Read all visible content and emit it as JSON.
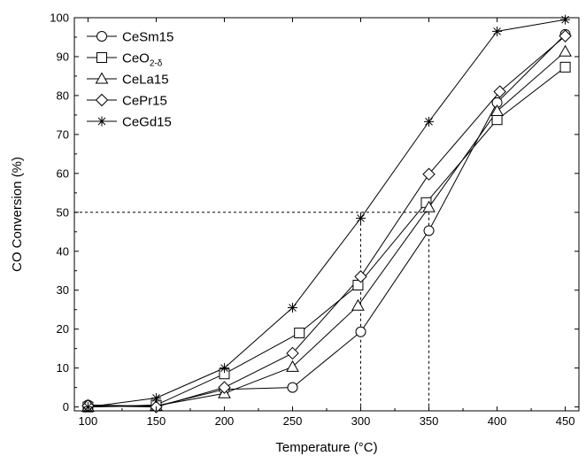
{
  "chart_data": {
    "type": "line",
    "title": "",
    "xlabel": "Temperature (°C)",
    "ylabel": "CO Conversion (%)",
    "xlim": [
      90,
      460
    ],
    "ylim": [
      -1,
      100
    ],
    "xticks": [
      100,
      150,
      200,
      250,
      300,
      350,
      400,
      450
    ],
    "yticks": [
      0,
      10,
      20,
      30,
      40,
      50,
      60,
      70,
      80,
      90,
      100
    ],
    "grid": false,
    "legend_position": "top-left",
    "series": [
      {
        "name": "CeSm15",
        "name_main": "CeSm15",
        "name_sub": "",
        "marker": "circle",
        "color": "#000000",
        "x": [
          100,
          150,
          200,
          250,
          300,
          350,
          400,
          450
        ],
        "y": [
          0.5,
          0.2,
          4.5,
          5,
          19.3,
          45.3,
          78.2,
          95.7
        ]
      },
      {
        "name": "CeO2-δ",
        "name_main": "CeO",
        "name_sub": "2-δ",
        "marker": "square",
        "color": "#000000",
        "x": [
          100,
          150,
          200,
          255,
          298,
          348,
          400,
          450
        ],
        "y": [
          0,
          0.5,
          8.5,
          19,
          31.3,
          52.5,
          73.8,
          87.3
        ]
      },
      {
        "name": "CeLa15",
        "name_main": "CeLa15",
        "name_sub": "",
        "marker": "triangle",
        "color": "#000000",
        "x": [
          100,
          150,
          200,
          250,
          298,
          350,
          400,
          450
        ],
        "y": [
          0,
          0.3,
          3.5,
          10.3,
          26,
          51.3,
          76,
          91.3
        ]
      },
      {
        "name": "CePr15",
        "name_main": "CePr15",
        "name_sub": "",
        "marker": "diamond",
        "color": "#000000",
        "x": [
          100,
          150,
          200,
          250,
          300,
          350,
          402,
          450
        ],
        "y": [
          0.3,
          0,
          5,
          13.8,
          33.5,
          59.8,
          81,
          95.3
        ]
      },
      {
        "name": "CeGd15",
        "name_main": "CeGd15",
        "name_sub": "",
        "marker": "asterisk",
        "color": "#000000",
        "x": [
          100,
          150,
          200,
          250,
          300,
          350,
          400,
          450
        ],
        "y": [
          0,
          2.3,
          10,
          25.5,
          48.5,
          73.3,
          96.5,
          99.5
        ]
      }
    ],
    "reference_lines": [
      {
        "type": "dashed",
        "points": [
          [
            90,
            50
          ],
          [
            350,
            50
          ]
        ]
      },
      {
        "type": "dashed",
        "points": [
          [
            300,
            50
          ],
          [
            300,
            -1
          ]
        ]
      },
      {
        "type": "dashed",
        "points": [
          [
            350,
            50
          ],
          [
            350,
            -1
          ]
        ]
      }
    ]
  }
}
